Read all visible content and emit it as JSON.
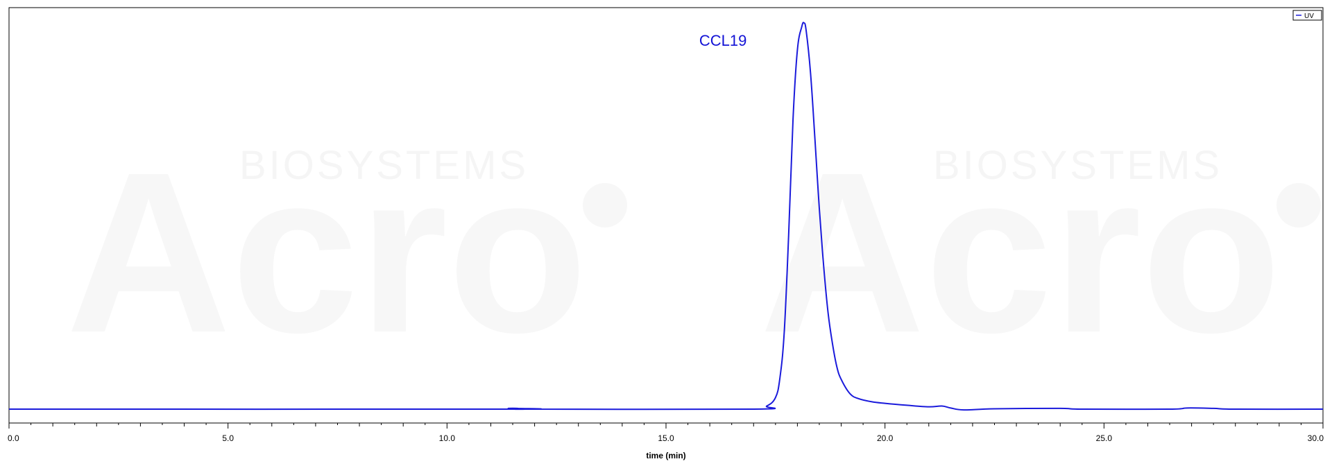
{
  "chart_data": {
    "type": "line",
    "xlabel": "time (min)",
    "ylabel": "",
    "xlim": [
      0,
      30
    ],
    "ylim": [
      0,
      1.0
    ],
    "x_ticks": [
      0,
      5,
      10,
      15,
      20,
      25,
      30
    ],
    "x_tick_labels": [
      "0.0",
      "5.0",
      "10.0",
      "15.0",
      "20.0",
      "25.0",
      "30.0"
    ],
    "grid": false,
    "legend_position": "top-right",
    "legend": [
      "UV"
    ],
    "series": [
      {
        "name": "UV",
        "color": "#1a1adb",
        "x": [
          0,
          11.2,
          11.4,
          11.6,
          11.8,
          12,
          17,
          17.3,
          17.5,
          17.6,
          17.7,
          17.8,
          17.9,
          18.0,
          18.1,
          18.15,
          18.2,
          18.3,
          18.4,
          18.5,
          18.6,
          18.7,
          18.8,
          18.9,
          19.0,
          19.2,
          19.4,
          19.7,
          20.0,
          20.5,
          21.0,
          21.3,
          21.5,
          21.8,
          22.5,
          24.0,
          24.5,
          26.5,
          26.9,
          27.5,
          28,
          30
        ],
        "y": [
          0.0,
          0.0,
          0.002,
          0.002,
          0.0,
          0.0,
          0.0,
          0.008,
          0.03,
          0.08,
          0.2,
          0.45,
          0.75,
          0.93,
          0.99,
          1.0,
          0.98,
          0.87,
          0.7,
          0.52,
          0.37,
          0.25,
          0.17,
          0.11,
          0.077,
          0.04,
          0.027,
          0.019,
          0.015,
          0.01,
          0.006,
          0.008,
          0.003,
          -0.002,
          0.001,
          0.002,
          0.0,
          0.0,
          0.003,
          0.002,
          0.0,
          0.0
        ]
      }
    ],
    "annotations": [
      {
        "text": "CCL19",
        "x": 16.3,
        "y": 0.955
      }
    ]
  },
  "watermark": {
    "text": "Acro",
    "subtext": "BIOSYSTEMS"
  }
}
